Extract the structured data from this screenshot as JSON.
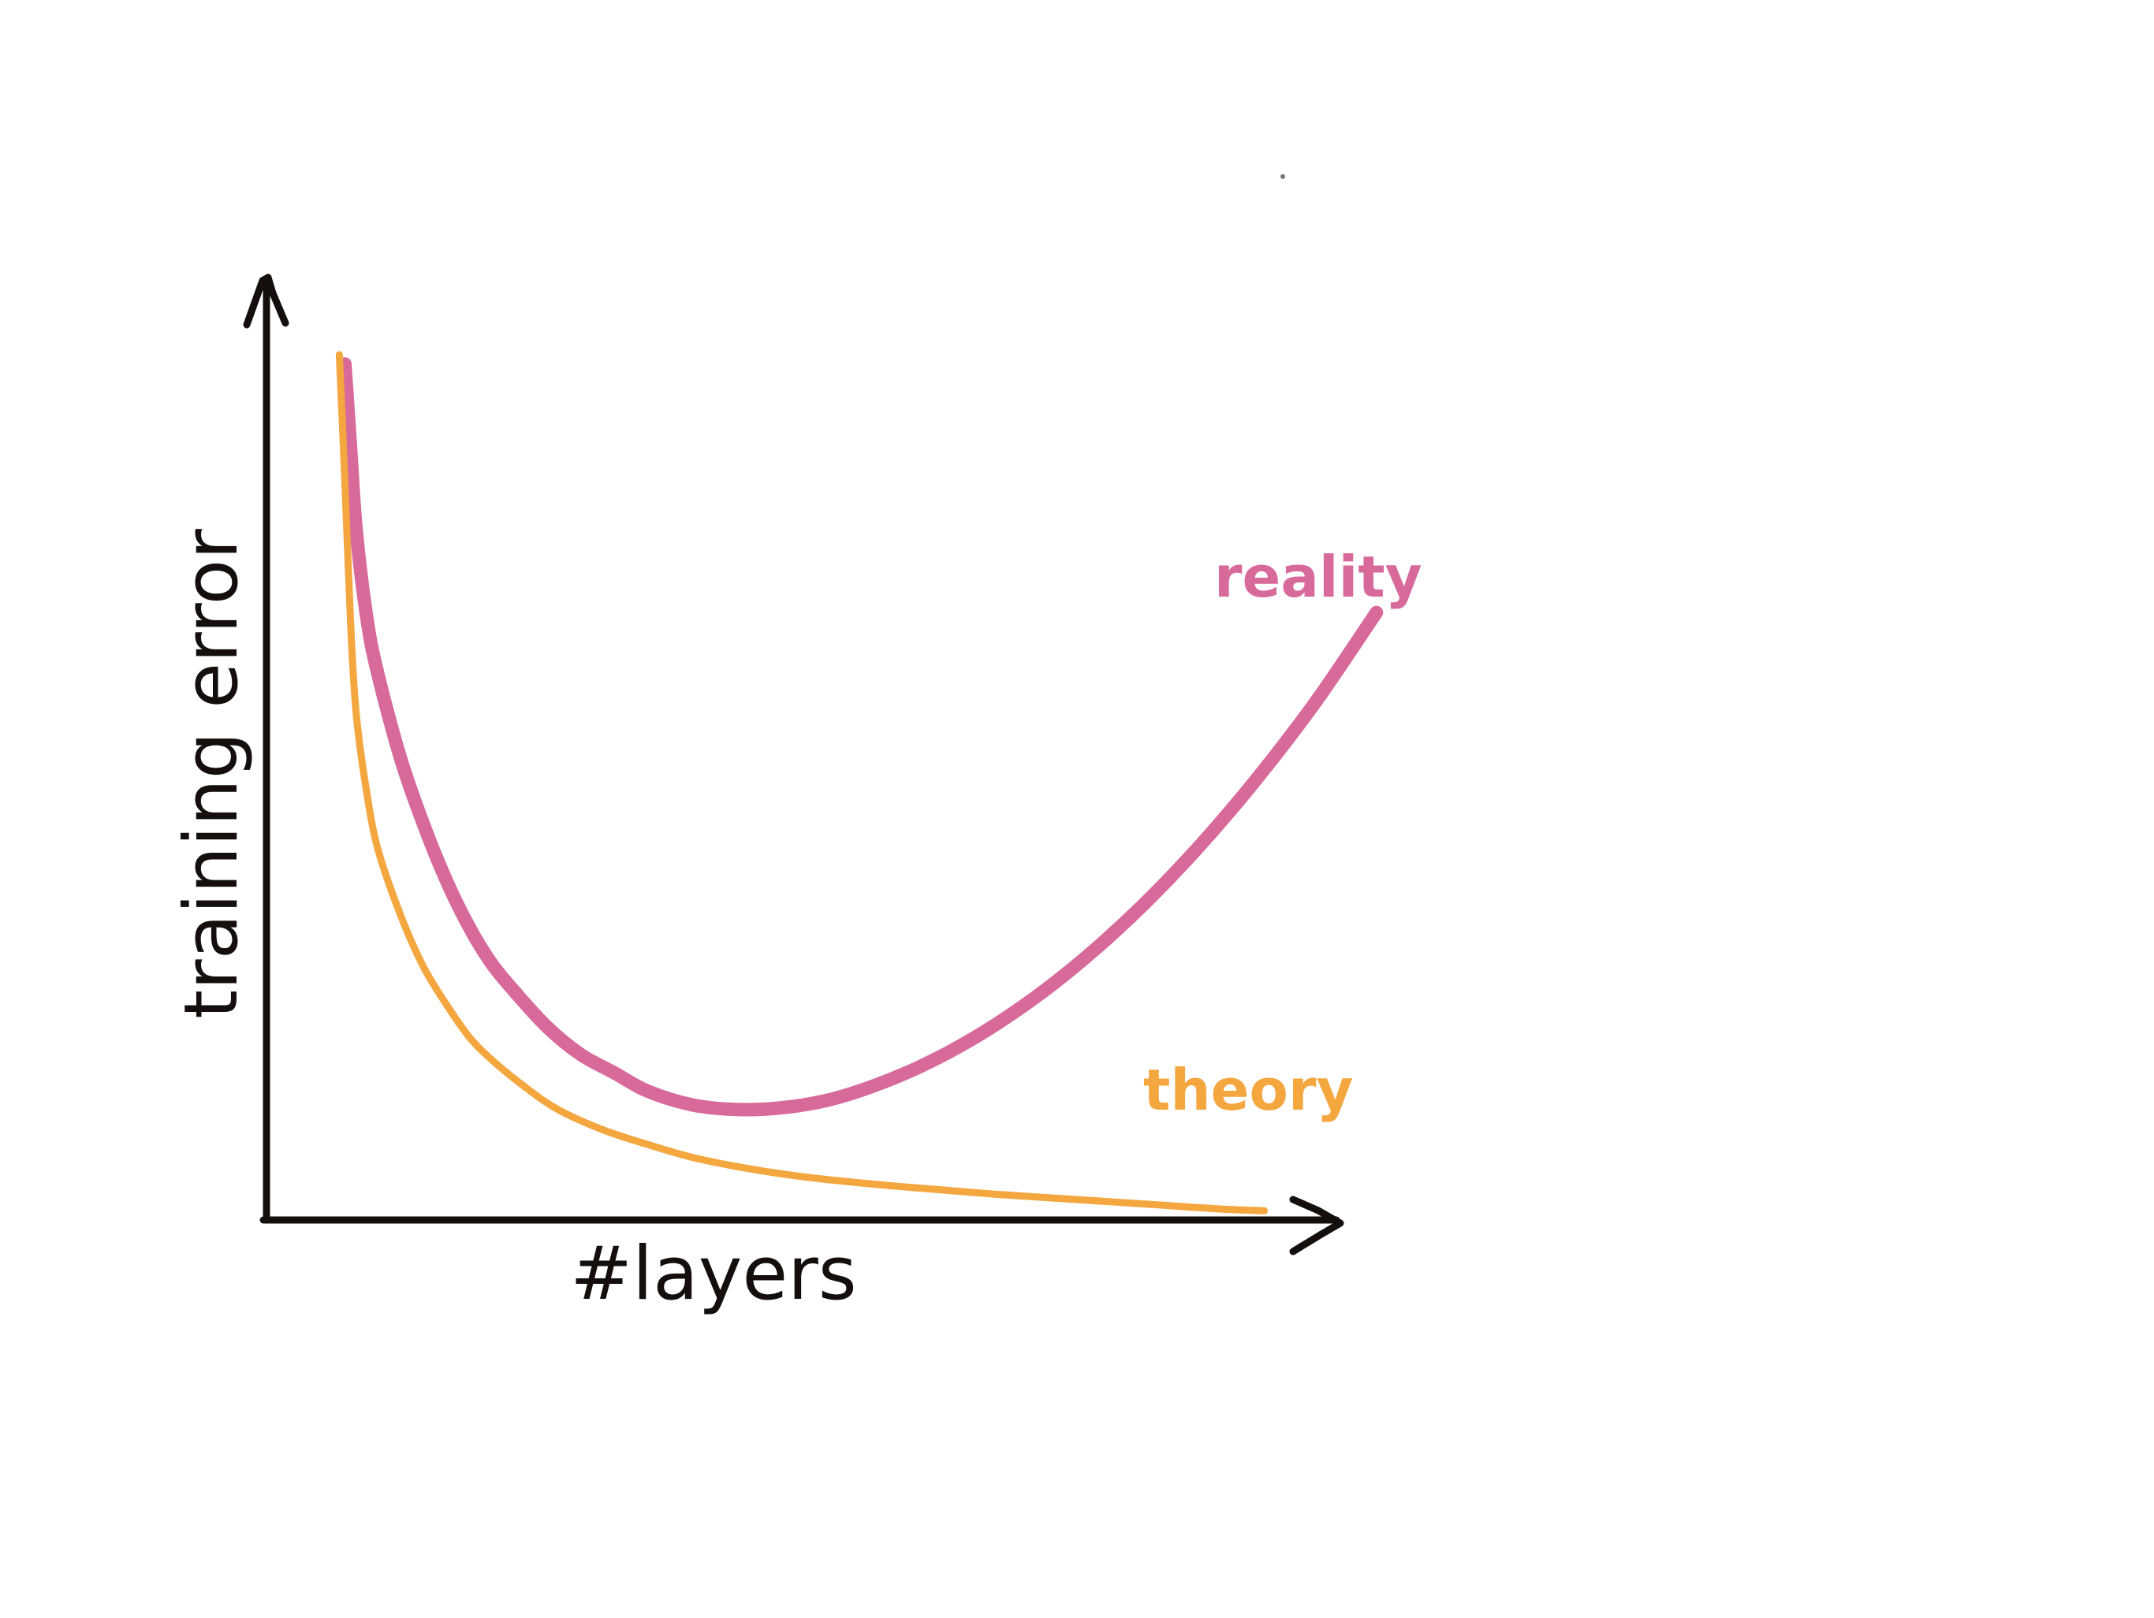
{
  "chart_data": {
    "type": "line",
    "xlabel": "#layers",
    "ylabel": "training error",
    "xlim": [
      0,
      10
    ],
    "ylim": [
      0,
      10
    ],
    "ticks_shown": false,
    "grid": false,
    "legend": "inline labels next to curves",
    "series": [
      {
        "name": "reality",
        "color": "#d76a9a",
        "x": [
          0.7,
          0.75,
          0.8,
          0.9,
          1.0,
          1.2,
          1.4,
          1.6,
          1.8,
          2.0,
          2.2,
          2.5,
          2.8,
          3.1,
          3.4,
          3.8,
          4.2,
          4.6,
          5.0,
          5.4,
          5.8,
          6.2,
          6.6,
          7.0,
          7.4,
          7.8,
          8.2,
          8.6,
          9.0,
          9.4,
          9.9
        ],
        "y": [
          9.3,
          8.4,
          7.5,
          6.5,
          5.9,
          5.0,
          4.3,
          3.7,
          3.2,
          2.8,
          2.5,
          2.1,
          1.8,
          1.6,
          1.4,
          1.25,
          1.2,
          1.22,
          1.3,
          1.45,
          1.65,
          1.9,
          2.2,
          2.55,
          2.95,
          3.4,
          3.9,
          4.45,
          5.05,
          5.7,
          6.6
        ]
      },
      {
        "name": "theory",
        "color": "#f4a63f",
        "x": [
          0.65,
          0.7,
          0.75,
          0.8,
          0.9,
          1.0,
          1.2,
          1.4,
          1.6,
          1.8,
          2.0,
          2.3,
          2.6,
          3.0,
          3.4,
          3.8,
          4.2,
          4.6,
          5.0,
          5.5,
          6.0,
          6.5,
          7.0,
          7.5,
          8.0,
          8.5,
          8.9
        ],
        "y": [
          9.4,
          8.0,
          6.5,
          5.5,
          4.6,
          4.0,
          3.3,
          2.75,
          2.35,
          2.0,
          1.75,
          1.45,
          1.2,
          0.98,
          0.82,
          0.68,
          0.58,
          0.5,
          0.44,
          0.38,
          0.33,
          0.28,
          0.24,
          0.2,
          0.16,
          0.12,
          0.1
        ]
      }
    ]
  }
}
